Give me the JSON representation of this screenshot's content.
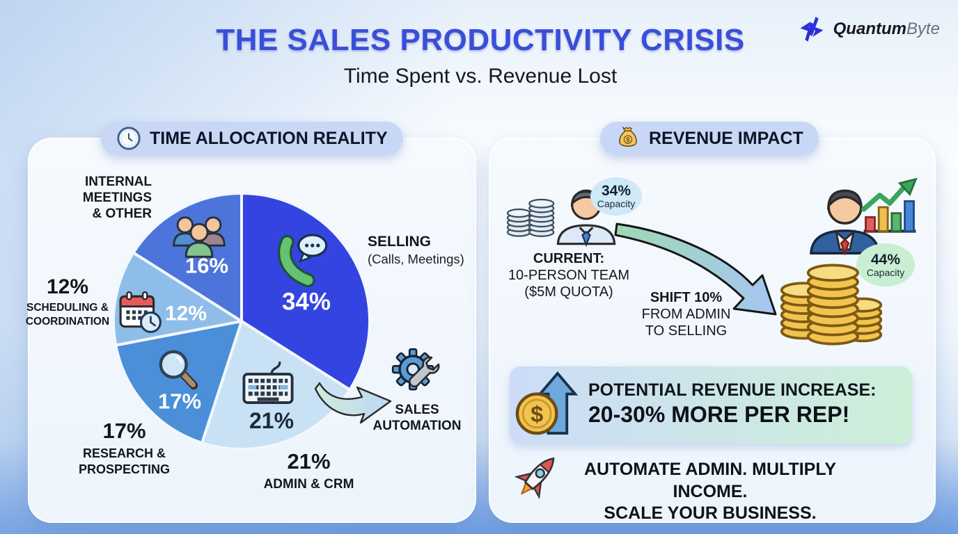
{
  "header": {
    "title": "THE SALES PRODUCTIVITY CRISIS",
    "subtitle": "Time Spent vs. Revenue Lost",
    "brand": {
      "bold": "Quantum",
      "light": "Byte",
      "icon": "qb-logo-icon",
      "icon_color": "#2a2fd9"
    }
  },
  "left_panel": {
    "pill": {
      "label": "TIME ALLOCATION REALITY",
      "icon": "clock-icon",
      "bg_color": "#c9d7f7"
    },
    "automation": {
      "label": "SALES AUTOMATION",
      "icon": "gear-wrench-icon"
    }
  },
  "chart_data": {
    "type": "pie",
    "title": "TIME ALLOCATION REALITY",
    "units": "percent of sales rep time",
    "start_angle_deg": -90,
    "direction": "clockwise",
    "slices": [
      {
        "label": "SELLING",
        "sublabel": "(Calls, Meetings)",
        "value": 34,
        "pct": "34%",
        "color": "#3444e0",
        "pct_color": "#ffffff",
        "icon": "phone"
      },
      {
        "label": "ADMIN & CRM",
        "value": 21,
        "pct": "21%",
        "color": "#c8e1f5",
        "pct_color": "#1e2a38",
        "icon": "keyboard"
      },
      {
        "label": "RESEARCH & PROSPECTING",
        "value": 17,
        "pct": "17%",
        "color": "#4a8fd8",
        "pct_color": "#ffffff",
        "icon": "magnifier"
      },
      {
        "label": "SCHEDULING & COORDINATION",
        "value": 12,
        "pct": "12%",
        "color": "#8fbdea",
        "pct_color": "#ffffff",
        "icon": "calendar"
      },
      {
        "label": "INTERNAL MEETINGS & OTHER",
        "value": 16,
        "pct": "16%",
        "color": "#4d74da",
        "pct_color": "#ffffff",
        "icon": "people"
      }
    ],
    "callout": {
      "label": "SALES AUTOMATION"
    }
  },
  "right_panel": {
    "pill": {
      "label": "REVENUE IMPACT",
      "icon": "money-bag-icon",
      "bg_color": "#c9d7f7"
    },
    "current": {
      "capacity_value": "34%",
      "capacity_label": "Capacity",
      "bubble_color": "#cfe9f9",
      "line1": "CURRENT:",
      "line2": "10-PERSON TEAM",
      "line3": "($5M QUOTA)"
    },
    "shift": {
      "line1": "SHIFT 10%",
      "line2": "FROM ADMIN",
      "line3": "TO SELLING"
    },
    "future": {
      "capacity_value": "44%",
      "capacity_label": "Capacity",
      "bubble_color": "#c9eed2"
    },
    "revenue_box": {
      "line1": "POTENTIAL REVENUE INCREASE:",
      "line2": "20-30% MORE PER REP!",
      "bg_left": "#ccdcf8",
      "bg_right": "#cdefd7"
    },
    "tagline": {
      "line1": "AUTOMATE ADMIN. MULTIPLY INCOME.",
      "line2": "SCALE YOUR BUSINESS."
    }
  },
  "colors": {
    "title": "#3a4ed9",
    "panel_bg": "#f3f8fd",
    "background_bottom": "#6d9de1"
  }
}
